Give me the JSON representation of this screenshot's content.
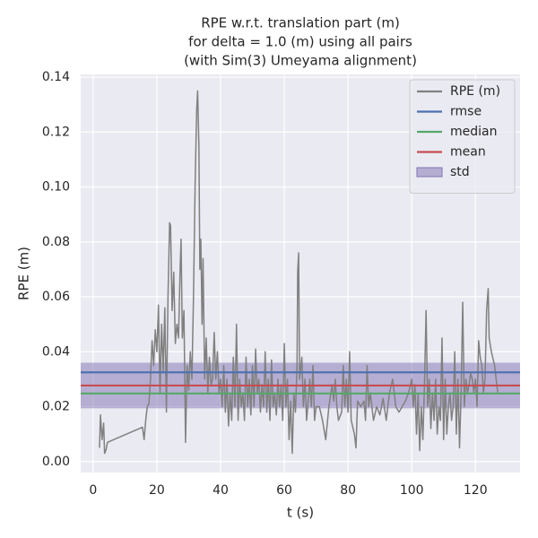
{
  "chart_data": {
    "type": "line",
    "title": [
      "RPE w.r.t. translation part (m)",
      "for delta = 1.0 (m) using all pairs",
      "(with Sim(3) Umeyama alignment)"
    ],
    "xlabel": "t (s)",
    "ylabel": "RPE (m)",
    "x": [
      2,
      2.3,
      2.8,
      3.3,
      3.6,
      4,
      4.5,
      15.5,
      16,
      16.5,
      17,
      17.5,
      18,
      18.5,
      19,
      19.5,
      20,
      20.5,
      21,
      21.5,
      22,
      22.5,
      23,
      23.5,
      24,
      24.3,
      24.8,
      25.3,
      25.8,
      26.3,
      26.8,
      27.3,
      27.6,
      28,
      28.5,
      29,
      29.5,
      30,
      30.5,
      31,
      31.5,
      32,
      32.5,
      32.8,
      33.2,
      33.5,
      33.8,
      34.2,
      34.5,
      35,
      35.5,
      36,
      36.5,
      37,
      37.5,
      38,
      38.5,
      39,
      39.5,
      40,
      40.5,
      41,
      41.5,
      42,
      42.5,
      43,
      43.5,
      44,
      44.5,
      45,
      45.5,
      46,
      46.5,
      47,
      47.5,
      48,
      48.5,
      49,
      49.5,
      50,
      50.5,
      51,
      51.5,
      52,
      52.5,
      53,
      53.5,
      54,
      54.5,
      55,
      55.5,
      56,
      56.5,
      57,
      57.5,
      58,
      58.5,
      59,
      59.5,
      60,
      60.5,
      61,
      61.5,
      62,
      62.5,
      63,
      63.5,
      64,
      64.2,
      64.5,
      64.8,
      65.5,
      66,
      66.5,
      67,
      67.5,
      68,
      68.5,
      69,
      69.5,
      70,
      71,
      72,
      73,
      74,
      75,
      75.5,
      76,
      76.5,
      77,
      78,
      78.5,
      79,
      79.5,
      80,
      80.5,
      81,
      82,
      82.5,
      83,
      84,
      85,
      85.5,
      86,
      86.5,
      87,
      88,
      89,
      90,
      91,
      92,
      93,
      94,
      95,
      96,
      97,
      98,
      99,
      100,
      100.5,
      101,
      101.5,
      102,
      102.5,
      103,
      103.5,
      104,
      104.5,
      105,
      105.5,
      106,
      106.5,
      107,
      107.5,
      108,
      108.5,
      109,
      109.5,
      110,
      110.5,
      111,
      111.5,
      112,
      112.5,
      113,
      113.5,
      114,
      114.5,
      115,
      115.5,
      116,
      116.5,
      117,
      117.5,
      118,
      118.5,
      119,
      119.5,
      120,
      120.5,
      121,
      121.5,
      122,
      122.5,
      123,
      123.5,
      124,
      124.3,
      125,
      126,
      127
    ],
    "series": [
      {
        "name": "RPE (m)",
        "color": "#808080",
        "values": [
          0.005,
          0.017,
          0.008,
          0.014,
          0.003,
          0.004,
          0.007,
          0.0125,
          0.008,
          0.015,
          0.02,
          0.021,
          0.03,
          0.044,
          0.035,
          0.048,
          0.04,
          0.057,
          0.025,
          0.05,
          0.033,
          0.056,
          0.018,
          0.06,
          0.087,
          0.086,
          0.055,
          0.069,
          0.043,
          0.05,
          0.045,
          0.07,
          0.081,
          0.045,
          0.055,
          0.007,
          0.035,
          0.026,
          0.04,
          0.03,
          0.06,
          0.1,
          0.128,
          0.135,
          0.115,
          0.07,
          0.081,
          0.05,
          0.074,
          0.03,
          0.045,
          0.025,
          0.038,
          0.028,
          0.03,
          0.047,
          0.03,
          0.04,
          0.025,
          0.03,
          0.02,
          0.035,
          0.018,
          0.03,
          0.013,
          0.025,
          0.015,
          0.038,
          0.02,
          0.05,
          0.015,
          0.03,
          0.02,
          0.025,
          0.015,
          0.038,
          0.02,
          0.03,
          0.017,
          0.035,
          0.02,
          0.041,
          0.025,
          0.03,
          0.018,
          0.028,
          0.02,
          0.04,
          0.018,
          0.03,
          0.015,
          0.037,
          0.02,
          0.025,
          0.017,
          0.03,
          0.02,
          0.028,
          0.015,
          0.043,
          0.02,
          0.03,
          0.008,
          0.022,
          0.003,
          0.025,
          0.018,
          0.035,
          0.069,
          0.076,
          0.03,
          0.038,
          0.02,
          0.03,
          0.015,
          0.022,
          0.03,
          0.02,
          0.035,
          0.015,
          0.02,
          0.02,
          0.015,
          0.008,
          0.02,
          0.028,
          0.022,
          0.03,
          0.02,
          0.015,
          0.018,
          0.035,
          0.02,
          0.03,
          0.018,
          0.04,
          0.015,
          0.01,
          0.005,
          0.022,
          0.02,
          0.022,
          0.015,
          0.035,
          0.02,
          0.025,
          0.015,
          0.02,
          0.017,
          0.023,
          0.015,
          0.025,
          0.03,
          0.02,
          0.018,
          0.02,
          0.022,
          0.025,
          0.03,
          0.02,
          0.028,
          0.01,
          0.025,
          0.004,
          0.02,
          0.008,
          0.028,
          0.055,
          0.02,
          0.03,
          0.012,
          0.025,
          0.015,
          0.03,
          0.01,
          0.02,
          0.015,
          0.045,
          0.008,
          0.03,
          0.01,
          0.02,
          0.025,
          0.015,
          0.02,
          0.04,
          0.01,
          0.03,
          0.005,
          0.025,
          0.058,
          0.02,
          0.03,
          0.025,
          0.028,
          0.032,
          0.03,
          0.025,
          0.03,
          0.02,
          0.044,
          0.038,
          0.035,
          0.025,
          0.03,
          0.055,
          0.063,
          0.045,
          0.04,
          0.035,
          0.025
        ]
      }
    ],
    "stats": [
      {
        "name": "rmse",
        "color": "#4c72b0",
        "value": 0.0325
      },
      {
        "name": "median",
        "color": "#55a868",
        "value": 0.0248
      },
      {
        "name": "mean",
        "color": "#c44e52",
        "value": 0.0277
      }
    ],
    "std": {
      "name": "std",
      "color": "#8172b2",
      "value": 0.0083
    },
    "xlim": [
      -3.9,
      134
    ],
    "ylim": [
      -0.004,
      0.141
    ],
    "xticks": [
      0,
      20,
      40,
      60,
      80,
      100,
      120
    ],
    "yticks": [
      {
        "value": 0,
        "label": "0.00"
      },
      {
        "value": 0.02,
        "label": "0.02"
      },
      {
        "value": 0.04,
        "label": "0.04"
      },
      {
        "value": 0.06,
        "label": "0.06"
      },
      {
        "value": 0.08,
        "label": "0.08"
      },
      {
        "value": 0.1,
        "label": "0.10"
      },
      {
        "value": 0.12,
        "label": "0.12"
      },
      {
        "value": 0.14,
        "label": "0.14"
      }
    ],
    "grid": true,
    "legend": "upper right"
  }
}
